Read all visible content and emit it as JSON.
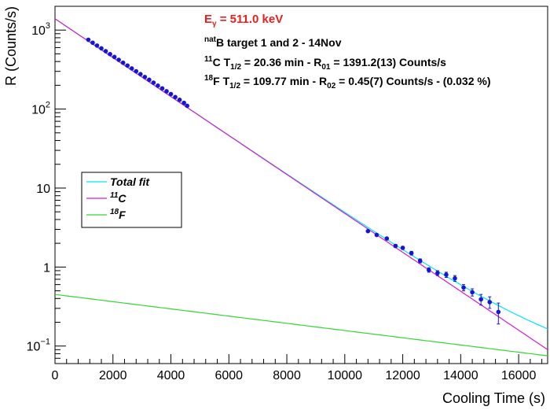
{
  "chart_data": {
    "type": "scatter",
    "xlabel": "Cooling Time (s)",
    "ylabel": "R (Counts/s)",
    "xlim": [
      0,
      17000
    ],
    "ylim": [
      0.06,
      2000
    ],
    "yscale": "log",
    "x_ticks": [
      0,
      2000,
      4000,
      6000,
      8000,
      10000,
      12000,
      14000,
      16000
    ],
    "x_tick_labels": [
      "0",
      "2000",
      "4000",
      "6000",
      "8000",
      "10000",
      "12000",
      "14000",
      "16000"
    ],
    "y_ticks": [
      0.1,
      1,
      10,
      100,
      1000
    ],
    "y_tick_labels": [
      {
        "base": "10",
        "exp": "−1"
      },
      {
        "base": "1",
        "exp": ""
      },
      {
        "base": "10",
        "exp": ""
      },
      {
        "base": "10",
        "exp": "2"
      },
      {
        "base": "10",
        "exp": "3"
      }
    ],
    "grid": false,
    "annotations": {
      "energy": {
        "main": "E",
        "sub": "γ",
        "rest": " = 511.0 keV",
        "color": "#e8201c"
      },
      "target": {
        "sup": "nat",
        "main": "B target 1 and 2 - 14Nov"
      },
      "c11": {
        "sup": "11",
        "a": "C T",
        "sub1": "1/2",
        "b": " = 20.36 min - R",
        "sub2": "01",
        "c": " = 1391.2(13) Counts/s"
      },
      "f18": {
        "sup": "18",
        "a": "F T",
        "sub1": "1/2",
        "b": " = 109.77 min - R",
        "sub2": "02",
        "c": " = 0.45(7) Counts/s - (0.032 %)"
      }
    },
    "legend": {
      "position": "middle-left",
      "entries": [
        {
          "label": "Total fit",
          "sup": "",
          "color": "#00e5ff"
        },
        {
          "label": "C",
          "sup": "11",
          "color": "#d81bd0"
        },
        {
          "label": "F",
          "sup": "18",
          "color": "#33d633"
        }
      ]
    },
    "series": [
      {
        "name": "Total fit",
        "kind": "line",
        "color": "#00e5ff",
        "formula": {
          "A1": 1391.2,
          "half1_min": 20.36,
          "A2": 0.45,
          "half2_min": 109.77
        },
        "x": [
          0,
          17000
        ]
      },
      {
        "name": "11C",
        "kind": "line",
        "color": "#d81bd0",
        "formula": {
          "A1": 1391.2,
          "half1_min": 20.36
        },
        "x": [
          0,
          17000
        ]
      },
      {
        "name": "18F",
        "kind": "line",
        "color": "#33d633",
        "formula": {
          "A2": 0.45,
          "half2_min": 109.77
        },
        "x": [
          0,
          17000
        ]
      },
      {
        "name": "data",
        "kind": "points",
        "color": "#1515d6",
        "x": [
          1150,
          1300,
          1450,
          1600,
          1750,
          1900,
          2050,
          2200,
          2350,
          2500,
          2650,
          2800,
          2950,
          3100,
          3250,
          3400,
          3550,
          3700,
          3850,
          4000,
          4150,
          4300,
          4450,
          4560,
          10800,
          11100,
          11450,
          11750,
          12000,
          12300,
          12600,
          12900,
          13200,
          13500,
          13800,
          14100,
          14400,
          14700,
          15000,
          15300
        ],
        "y": [
          754,
          692,
          637,
          587,
          540,
          496,
          457,
          420,
          386,
          356,
          327,
          301,
          277,
          255,
          235,
          216,
          198,
          183,
          168,
          155,
          142,
          131,
          120,
          110,
          2.85,
          2.55,
          2.3,
          1.85,
          1.75,
          1.5,
          1.2,
          0.92,
          0.84,
          0.8,
          0.72,
          0.55,
          0.48,
          0.39,
          0.36,
          0.27
        ],
        "yerr": [
          0,
          0,
          0,
          0,
          0,
          0,
          0,
          0,
          0,
          0,
          0,
          0,
          0,
          0,
          0,
          0,
          0,
          0,
          0,
          0,
          0,
          0,
          0,
          0,
          0.08,
          0.08,
          0.08,
          0.08,
          0.08,
          0.08,
          0.07,
          0.06,
          0.06,
          0.06,
          0.06,
          0.05,
          0.05,
          0.06,
          0.06,
          0.08
        ]
      }
    ]
  }
}
